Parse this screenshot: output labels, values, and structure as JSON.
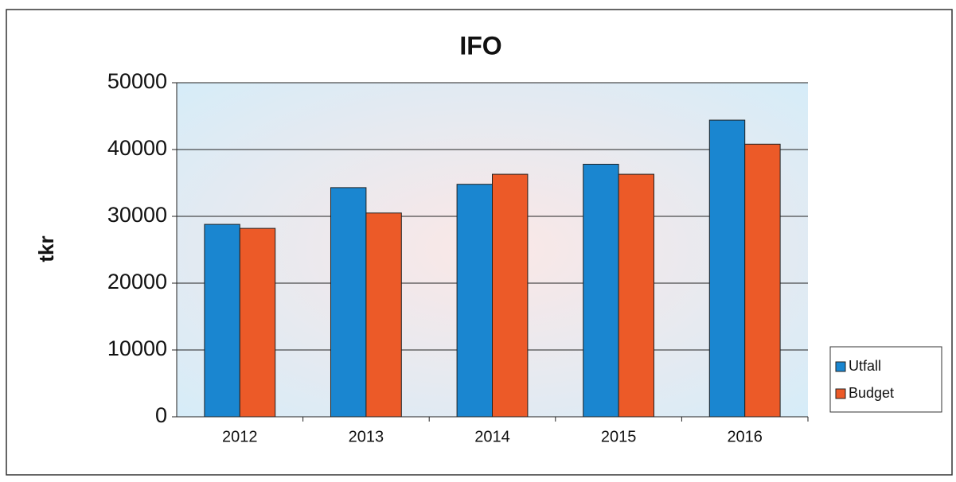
{
  "chart_data": {
    "type": "bar",
    "title": "IFO",
    "y_label": "tkr",
    "categories": [
      "2012",
      "2013",
      "2014",
      "2015",
      "2016"
    ],
    "series": [
      {
        "name": "Utfall",
        "color": "#1a86d0",
        "values": [
          28800,
          34300,
          34800,
          37800,
          44400
        ]
      },
      {
        "name": "Budget",
        "color": "#ec5a28",
        "values": [
          28200,
          30500,
          36300,
          36300,
          40800
        ]
      }
    ],
    "ylim": [
      0,
      50000
    ],
    "yticks": [
      0,
      10000,
      20000,
      30000,
      40000,
      50000
    ],
    "grid": true,
    "legend": "right"
  }
}
